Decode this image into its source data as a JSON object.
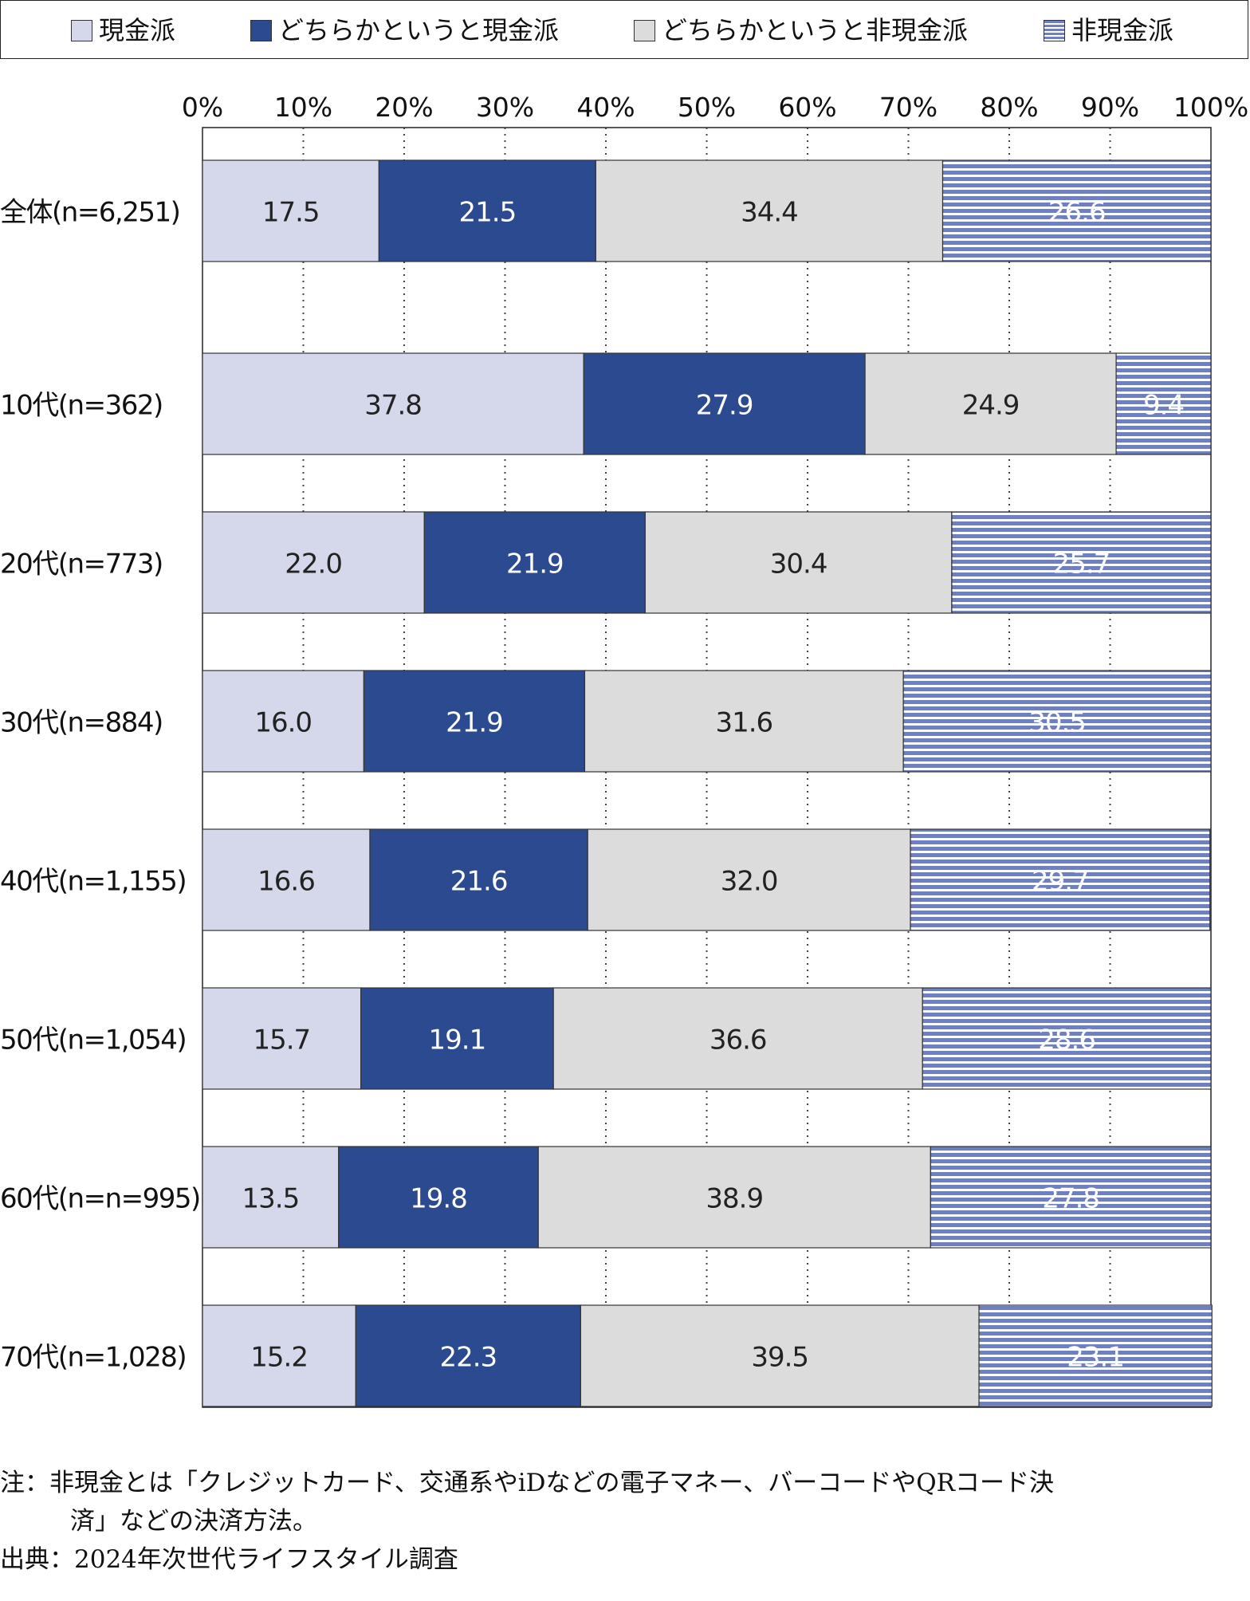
{
  "legend": {
    "items": [
      {
        "label": "現金派",
        "color": "#d5d8ea",
        "pattern": "solid"
      },
      {
        "label": "どちらかというと現金派",
        "color": "#2c4a90",
        "pattern": "solid"
      },
      {
        "label": "どちらかというと非現金派",
        "color": "#dcdcdc",
        "pattern": "solid"
      },
      {
        "label": "非現金派",
        "color": "#6f7fc0",
        "pattern": "horizontal-stripes",
        "stripe_color": "#ffffff"
      }
    ]
  },
  "chart_data": {
    "type": "bar",
    "orientation": "horizontal",
    "stacked": true,
    "categories": [
      "全体(n=6,251)",
      "10代(n=362)",
      "20代(n=773)",
      "30代(n=884)",
      "40代(n=1,155)",
      "50代(n=1,054)",
      "60代(n=n=995)",
      "70代(n=1,028)"
    ],
    "series": [
      {
        "name": "現金派",
        "values": [
          17.5,
          37.8,
          22.0,
          16.0,
          16.6,
          15.7,
          13.5,
          15.2
        ],
        "labels": [
          "17.5",
          "37.8",
          "22.0",
          "16.0",
          "16.6",
          "15.7",
          "13.5",
          "15.2"
        ]
      },
      {
        "name": "どちらかというと現金派",
        "values": [
          21.5,
          27.9,
          21.9,
          21.9,
          21.6,
          19.1,
          19.8,
          22.3
        ],
        "labels": [
          "21.5",
          "27.9",
          "21.9",
          "21.9",
          "21.6",
          "19.1",
          "19.8",
          "22.3"
        ]
      },
      {
        "name": "どちらかというと非現金派",
        "values": [
          34.4,
          24.9,
          30.4,
          31.6,
          32.0,
          36.6,
          38.9,
          39.5
        ],
        "labels": [
          "34.4",
          "24.9",
          "30.4",
          "31.6",
          "32.0",
          "36.6",
          "38.9",
          "39.5"
        ]
      },
      {
        "name": "非現金派",
        "values": [
          26.6,
          9.4,
          25.7,
          30.5,
          29.7,
          28.6,
          27.8,
          23.1
        ],
        "labels": [
          "26.6",
          "9.4",
          "25.7",
          "30.5",
          "29.7",
          "28.6",
          "27.8",
          "23.1"
        ]
      }
    ],
    "xlim": [
      0,
      100
    ],
    "x_ticks": [
      "0%",
      "10%",
      "20%",
      "30%",
      "40%",
      "50%",
      "60%",
      "70%",
      "80%",
      "90%",
      "100%"
    ],
    "axis_position": "top",
    "grid": "vertical dotted",
    "label_colors": [
      "#222222",
      "#ffffff",
      "#222222",
      "#ffffff"
    ]
  },
  "notes": {
    "line1": "注：非現金とは「クレジットカード、交通系やiDなどの電子マネー、バーコードやQRコード決",
    "line2": "済」などの決済方法。",
    "source": "出典：2024年次世代ライフスタイル調査"
  }
}
